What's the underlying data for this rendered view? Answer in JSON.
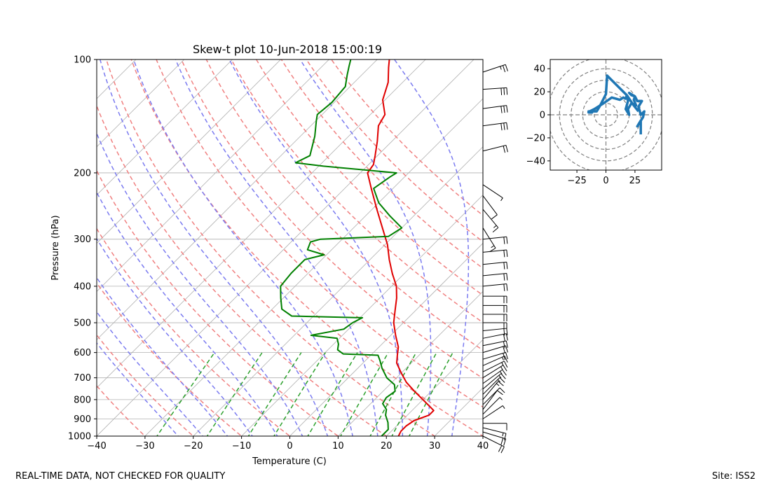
{
  "footer": {
    "left_text": "REAL-TIME DATA, NOT CHECKED FOR QUALITY",
    "right_text": "Site: ISS2"
  },
  "chart_data": [
    {
      "type": "line",
      "title": "Skew-t plot 10-Jun-2018 15:00:19",
      "xlabel": "Temperature (C)",
      "ylabel": "Pressure (hPa)",
      "xlim": [
        -40,
        40
      ],
      "ylim": [
        1000,
        100
      ],
      "y_scale": "log",
      "x_ticks": [
        -40,
        -30,
        -20,
        -10,
        0,
        10,
        20,
        30,
        40
      ],
      "y_ticks": [
        100,
        200,
        300,
        400,
        500,
        600,
        700,
        800,
        900,
        1000
      ],
      "grid": true,
      "colors": {
        "temperature": "#e00000",
        "dewpoint": "#008000",
        "dry_adiabats": "#f08080",
        "moist_adiabats": "#7b7bf0",
        "mixing_ratio": "#2ca02c",
        "isotherms": "#b0b0b0"
      },
      "series": [
        {
          "key": "temperature",
          "values": [
            {
              "p": 1000,
              "t": 22.5
            },
            {
              "p": 970,
              "t": 22.0
            },
            {
              "p": 940,
              "t": 22.0
            },
            {
              "p": 910,
              "t": 22.5
            },
            {
              "p": 880,
              "t": 24.5
            },
            {
              "p": 855,
              "t": 24.5
            },
            {
              "p": 830,
              "t": 22.5
            },
            {
              "p": 800,
              "t": 20.0
            },
            {
              "p": 760,
              "t": 16.5
            },
            {
              "p": 720,
              "t": 13.0
            },
            {
              "p": 680,
              "t": 10.0
            },
            {
              "p": 640,
              "t": 7.0
            },
            {
              "p": 610,
              "t": 5.5
            },
            {
              "p": 580,
              "t": 4.0
            },
            {
              "p": 540,
              "t": 1.0
            },
            {
              "p": 500,
              "t": -2.0
            },
            {
              "p": 460,
              "t": -4.5
            },
            {
              "p": 430,
              "t": -6.5
            },
            {
              "p": 400,
              "t": -9.0
            },
            {
              "p": 370,
              "t": -12.5
            },
            {
              "p": 340,
              "t": -16.0
            },
            {
              "p": 310,
              "t": -19.5
            },
            {
              "p": 280,
              "t": -24.0
            },
            {
              "p": 250,
              "t": -29.0
            },
            {
              "p": 220,
              "t": -34.5
            },
            {
              "p": 200,
              "t": -38.5
            },
            {
              "p": 190,
              "t": -39.0
            },
            {
              "p": 180,
              "t": -40.5
            },
            {
              "p": 165,
              "t": -43.0
            },
            {
              "p": 150,
              "t": -46.0
            },
            {
              "p": 140,
              "t": -47.0
            },
            {
              "p": 128,
              "t": -50.5
            },
            {
              "p": 115,
              "t": -53.0
            },
            {
              "p": 105,
              "t": -56.0
            },
            {
              "p": 100,
              "t": -57.5
            }
          ]
        },
        {
          "key": "dewpoint",
          "values": [
            {
              "p": 1000,
              "t": 19.0
            },
            {
              "p": 960,
              "t": 19.0
            },
            {
              "p": 920,
              "t": 17.5
            },
            {
              "p": 880,
              "t": 15.5
            },
            {
              "p": 850,
              "t": 14.5
            },
            {
              "p": 820,
              "t": 12.5
            },
            {
              "p": 790,
              "t": 12.0
            },
            {
              "p": 760,
              "t": 12.5
            },
            {
              "p": 730,
              "t": 11.0
            },
            {
              "p": 700,
              "t": 8.0
            },
            {
              "p": 660,
              "t": 5.0
            },
            {
              "p": 630,
              "t": 3.0
            },
            {
              "p": 610,
              "t": 1.5
            },
            {
              "p": 605,
              "t": -6.0
            },
            {
              "p": 590,
              "t": -8.0
            },
            {
              "p": 570,
              "t": -9.0
            },
            {
              "p": 550,
              "t": -10.5
            },
            {
              "p": 540,
              "t": -16.5
            },
            {
              "p": 520,
              "t": -11.0
            },
            {
              "p": 500,
              "t": -10.5
            },
            {
              "p": 485,
              "t": -9.5
            },
            {
              "p": 480,
              "t": -24.5
            },
            {
              "p": 460,
              "t": -28.0
            },
            {
              "p": 430,
              "t": -30.5
            },
            {
              "p": 400,
              "t": -33.0
            },
            {
              "p": 370,
              "t": -33.5
            },
            {
              "p": 340,
              "t": -33.5
            },
            {
              "p": 330,
              "t": -30.5
            },
            {
              "p": 320,
              "t": -35.0
            },
            {
              "p": 305,
              "t": -36.0
            },
            {
              "p": 300,
              "t": -34.5
            },
            {
              "p": 295,
              "t": -21.0
            },
            {
              "p": 280,
              "t": -20.0
            },
            {
              "p": 260,
              "t": -25.0
            },
            {
              "p": 240,
              "t": -30.0
            },
            {
              "p": 220,
              "t": -34.0
            },
            {
              "p": 205,
              "t": -33.0
            },
            {
              "p": 200,
              "t": -32.5
            },
            {
              "p": 192,
              "t": -49.0
            },
            {
              "p": 188,
              "t": -55.5
            },
            {
              "p": 180,
              "t": -54.0
            },
            {
              "p": 160,
              "t": -57.0
            },
            {
              "p": 145,
              "t": -60.0
            },
            {
              "p": 140,
              "t": -61.0
            },
            {
              "p": 130,
              "t": -60.5
            },
            {
              "p": 118,
              "t": -61.0
            },
            {
              "p": 110,
              "t": -63.0
            },
            {
              "p": 104,
              "t": -64.5
            },
            {
              "p": 100,
              "t": -65.5
            }
          ]
        }
      ],
      "wind_barbs": [
        {
          "p": 1000,
          "u": 10,
          "v": -5
        },
        {
          "p": 975,
          "u": 10,
          "v": -3
        },
        {
          "p": 950,
          "u": 8,
          "v": -2
        },
        {
          "p": 925,
          "u": 5,
          "v": 0
        },
        {
          "p": 900,
          "u": 3,
          "v": 2
        },
        {
          "p": 875,
          "u": 3,
          "v": 3
        },
        {
          "p": 850,
          "u": 3,
          "v": 4
        },
        {
          "p": 825,
          "u": 5,
          "v": 5
        },
        {
          "p": 800,
          "u": 5,
          "v": 6
        },
        {
          "p": 775,
          "u": 6,
          "v": 6
        },
        {
          "p": 750,
          "u": 7,
          "v": 6
        },
        {
          "p": 725,
          "u": 7,
          "v": 5
        },
        {
          "p": 700,
          "u": 8,
          "v": 5
        },
        {
          "p": 675,
          "u": 8,
          "v": 4
        },
        {
          "p": 650,
          "u": 9,
          "v": 4
        },
        {
          "p": 625,
          "u": 10,
          "v": 3
        },
        {
          "p": 600,
          "u": 10,
          "v": 3
        },
        {
          "p": 575,
          "u": 10,
          "v": 2
        },
        {
          "p": 550,
          "u": 10,
          "v": 2
        },
        {
          "p": 525,
          "u": 10,
          "v": 1
        },
        {
          "p": 500,
          "u": 11,
          "v": 0
        },
        {
          "p": 475,
          "u": 10,
          "v": 0
        },
        {
          "p": 450,
          "u": 10,
          "v": 0
        },
        {
          "p": 425,
          "u": 10,
          "v": 0
        },
        {
          "p": 400,
          "u": 10,
          "v": 1
        },
        {
          "p": 375,
          "u": 10,
          "v": 1
        },
        {
          "p": 350,
          "u": 10,
          "v": 1
        },
        {
          "p": 325,
          "u": 10,
          "v": 1
        },
        {
          "p": 300,
          "u": 10,
          "v": 1
        },
        {
          "p": 280,
          "u": 5,
          "v": -8
        },
        {
          "p": 250,
          "u": 5,
          "v": -6
        },
        {
          "p": 230,
          "u": 3,
          "v": -4
        },
        {
          "p": 215,
          "u": 3,
          "v": -2
        },
        {
          "p": 175,
          "u": 12,
          "v": 3
        },
        {
          "p": 150,
          "u": 15,
          "v": 2
        },
        {
          "p": 135,
          "u": 15,
          "v": 2
        },
        {
          "p": 120,
          "u": 15,
          "v": 1
        },
        {
          "p": 108,
          "u": 12,
          "v": 4
        }
      ]
    },
    {
      "type": "line",
      "subtype": "hodograph",
      "xlim": [
        -48,
        48
      ],
      "ylim": [
        -48,
        48
      ],
      "x_ticks": [
        -25,
        0,
        25
      ],
      "y_ticks": [
        -40,
        -20,
        0,
        20,
        40
      ],
      "rings": [
        10,
        20,
        30,
        40,
        50
      ],
      "color": "#1f77b4",
      "points": [
        [
          30,
          -17
        ],
        [
          30,
          -5
        ],
        [
          27,
          -10
        ],
        [
          32,
          -2
        ],
        [
          33,
          3
        ],
        [
          30,
          0
        ],
        [
          28,
          7
        ],
        [
          31,
          12
        ],
        [
          27,
          12
        ],
        [
          25,
          16
        ],
        [
          22,
          17
        ],
        [
          20,
          19
        ],
        [
          25,
          16
        ],
        [
          24,
          13
        ],
        [
          26,
          8
        ],
        [
          22,
          10
        ],
        [
          19,
          5
        ],
        [
          20,
          0
        ],
        [
          17,
          5
        ],
        [
          19,
          12
        ],
        [
          18,
          17
        ],
        [
          17,
          14
        ],
        [
          15,
          15
        ],
        [
          12,
          13
        ],
        [
          5,
          15
        ],
        [
          -2,
          10
        ],
        [
          -10,
          5
        ],
        [
          -14,
          3
        ],
        [
          -15,
          2
        ],
        [
          -12,
          2
        ],
        [
          -15,
          3
        ],
        [
          -8,
          3
        ],
        [
          -5,
          8
        ],
        [
          0,
          18
        ],
        [
          1,
          34
        ],
        [
          10,
          25
        ],
        [
          18,
          17
        ],
        [
          24,
          8
        ],
        [
          28,
          3
        ]
      ]
    }
  ]
}
